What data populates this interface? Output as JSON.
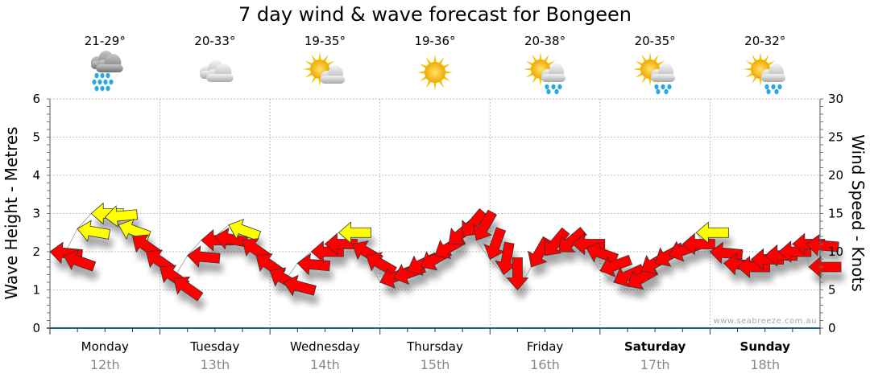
{
  "title": "7 day wind & wave forecast for Bongeen",
  "watermark": "www.seabreeze.com.au",
  "colors": {
    "arrow_low": "#ff0000",
    "arrow_high": "#ffff00",
    "axis": "#1f5f8b",
    "grid": "#aaaaaa",
    "date": "#888888"
  },
  "days": [
    {
      "name": "Monday",
      "date": "12th",
      "temp": "21-29°",
      "icon": "rain-cloud",
      "bold": false
    },
    {
      "name": "Tuesday",
      "date": "13th",
      "temp": "20-33°",
      "icon": "cloudy",
      "bold": false
    },
    {
      "name": "Wednesday",
      "date": "14th",
      "temp": "19-35°",
      "icon": "partly-cloudy",
      "bold": false
    },
    {
      "name": "Thursday",
      "date": "15th",
      "temp": "19-36°",
      "icon": "sunny",
      "bold": false
    },
    {
      "name": "Friday",
      "date": "16th",
      "temp": "20-38°",
      "icon": "partly-cloudy-showers",
      "bold": false
    },
    {
      "name": "Saturday",
      "date": "17th",
      "temp": "20-35°",
      "icon": "partly-cloudy-showers",
      "bold": true
    },
    {
      "name": "Sunday",
      "date": "18th",
      "temp": "20-32°",
      "icon": "partly-cloudy-showers",
      "bold": true
    }
  ],
  "chart_data": {
    "type": "line",
    "title": "7 day wind & wave forecast for Bongeen",
    "ylabel": "Wave Height - Metres",
    "y2label": "Wind Speed - Knots",
    "ylim": [
      0,
      6
    ],
    "y2lim": [
      0,
      30
    ],
    "yticks": [
      "0",
      "1",
      "2",
      "3",
      "4",
      "5",
      "6"
    ],
    "y2ticks": [
      "0",
      "5",
      "10",
      "15",
      "20",
      "25",
      "30"
    ],
    "grid": true,
    "x_interval_hours": 3,
    "highlight_threshold_knots": 12.5,
    "series": [
      {
        "name": "Wind speed (knots)",
        "values": [
          10,
          9.5,
          13,
          15,
          14.5,
          13.5,
          12,
          10,
          8,
          6.5,
          9.5,
          11.5,
          12,
          13.5,
          11.5,
          9.5,
          7.5,
          6,
          8.5,
          10,
          11,
          12.5,
          11,
          9.5,
          6,
          6.5,
          7.5,
          8,
          9.5,
          11,
          12,
          11.5,
          9,
          7,
          5,
          8,
          9.5,
          10,
          11,
          10.5,
          7.5,
          6,
          5.5,
          7.5,
          8.5,
          9.5,
          11,
          12.5,
          10,
          8.5,
          8,
          9,
          9.5,
          10,
          11,
          11,
          8
        ]
      },
      {
        "name": "Arrow heading (deg)",
        "values": [
          185,
          200,
          190,
          180,
          175,
          200,
          215,
          215,
          215,
          215,
          185,
          180,
          190,
          200,
          215,
          215,
          210,
          195,
          185,
          180,
          180,
          180,
          210,
          210,
          160,
          160,
          155,
          150,
          150,
          140,
          130,
          120,
          110,
          100,
          90,
          120,
          130,
          140,
          180,
          200,
          160,
          155,
          150,
          150,
          150,
          160,
          180,
          180,
          185,
          185,
          180,
          180,
          180,
          180,
          180,
          185,
          180
        ]
      }
    ]
  }
}
